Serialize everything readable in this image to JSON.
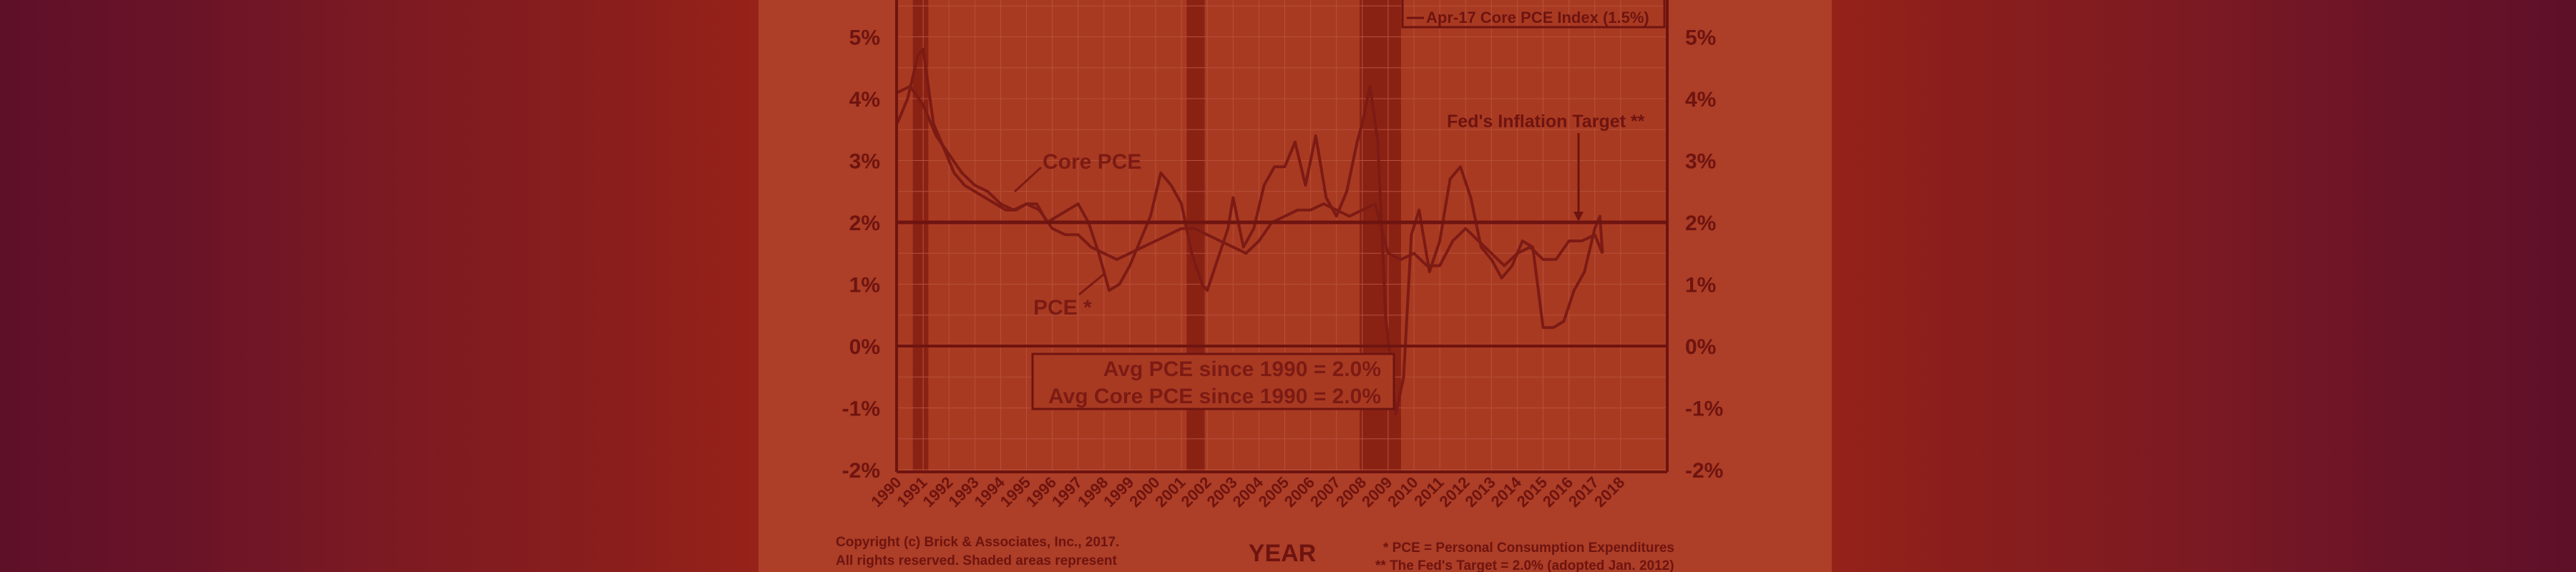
{
  "chart_data": {
    "type": "line",
    "xlabel": "YEAR",
    "ylim": [
      -2,
      5.5
    ],
    "xlim": [
      1990,
      2018
    ],
    "grid": true,
    "x_ticks": [
      "1990",
      "1991",
      "1992",
      "1993",
      "1994",
      "1995",
      "1996",
      "1997",
      "1998",
      "1999",
      "2000",
      "2001",
      "2002",
      "2003",
      "2004",
      "2005",
      "2006",
      "2007",
      "2008",
      "2009",
      "2010",
      "2011",
      "2012",
      "2013",
      "2014",
      "2015",
      "2016",
      "2017",
      "2018"
    ],
    "y_ticks": [
      {
        "value": 5,
        "label": "5%"
      },
      {
        "value": 4,
        "label": "4%"
      },
      {
        "value": 3,
        "label": "3%"
      },
      {
        "value": 2,
        "label": "2%"
      },
      {
        "value": 1,
        "label": "1%"
      },
      {
        "value": 0,
        "label": "0%"
      },
      {
        "value": -1,
        "label": "-1%"
      },
      {
        "value": -2,
        "label": "-2%"
      }
    ],
    "recessions": [
      [
        1990.6,
        1991.2
      ],
      [
        2001.2,
        2001.9
      ],
      [
        2007.9,
        2009.5
      ]
    ],
    "target_line": 2.0,
    "legend": {
      "text": "Apr-17 Core PCE Index (1.5%)",
      "position": "top-right"
    },
    "annotations": {
      "core_pce": "Core PCE",
      "pce": "PCE *",
      "fed_target": "Fed's Inflation Target **"
    },
    "avg_box": [
      "Avg PCE since 1990 = 2.0%",
      "Avg Core PCE since 1990 = 2.0%"
    ],
    "series": [
      {
        "name": "PCE",
        "x": [
          1990.0,
          1990.4,
          1990.8,
          1991.0,
          1991.4,
          1991.8,
          1992.2,
          1992.6,
          1993.0,
          1993.4,
          1993.8,
          1994.2,
          1994.6,
          1995.0,
          1995.4,
          1995.8,
          1996.2,
          1996.6,
          1997.0,
          1997.4,
          1997.8,
          1998.2,
          1998.6,
          1999.0,
          1999.4,
          1999.8,
          2000.2,
          2000.6,
          2001.0,
          2001.4,
          2001.8,
          2002.0,
          2002.4,
          2002.8,
          2003.0,
          2003.4,
          2003.8,
          2004.2,
          2004.6,
          2005.0,
          2005.4,
          2005.8,
          2006.2,
          2006.6,
          2007.0,
          2007.4,
          2007.8,
          2008.0,
          2008.3,
          2008.6,
          2008.9,
          2009.1,
          2009.3,
          2009.6,
          2009.9,
          2010.2,
          2010.6,
          2011.0,
          2011.4,
          2011.8,
          2012.2,
          2012.6,
          2013.0,
          2013.4,
          2013.8,
          2014.2,
          2014.6,
          2015.0,
          2015.4,
          2015.8,
          2016.2,
          2016.6,
          2017.0,
          2017.2,
          2017.3
        ],
        "values": [
          3.6,
          4.0,
          4.7,
          4.8,
          3.6,
          3.2,
          2.8,
          2.6,
          2.5,
          2.4,
          2.3,
          2.2,
          2.2,
          2.3,
          2.3,
          2.0,
          2.1,
          2.2,
          2.3,
          2.0,
          1.5,
          0.9,
          1.0,
          1.3,
          1.7,
          2.1,
          2.8,
          2.6,
          2.3,
          1.5,
          1.0,
          0.9,
          1.4,
          1.9,
          2.4,
          1.6,
          1.9,
          2.6,
          2.9,
          2.9,
          3.3,
          2.6,
          3.4,
          2.4,
          2.1,
          2.5,
          3.3,
          3.6,
          4.2,
          3.3,
          0.5,
          -0.3,
          -1.1,
          -0.5,
          1.8,
          2.2,
          1.2,
          1.7,
          2.7,
          2.9,
          2.4,
          1.6,
          1.4,
          1.1,
          1.3,
          1.7,
          1.6,
          0.3,
          0.3,
          0.4,
          0.9,
          1.2,
          1.9,
          2.1,
          1.5
        ]
      },
      {
        "name": "Core PCE",
        "x": [
          1990.0,
          1990.5,
          1991.0,
          1991.5,
          1992.0,
          1992.5,
          1993.0,
          1993.5,
          1994.0,
          1994.5,
          1995.0,
          1995.5,
          1996.0,
          1996.5,
          1997.0,
          1997.5,
          1998.0,
          1998.5,
          1999.0,
          1999.5,
          2000.0,
          2000.5,
          2001.0,
          2001.5,
          2002.0,
          2002.5,
          2003.0,
          2003.5,
          2004.0,
          2004.5,
          2005.0,
          2005.5,
          2006.0,
          2006.5,
          2007.0,
          2007.5,
          2008.0,
          2008.5,
          2009.0,
          2009.5,
          2010.0,
          2010.5,
          2011.0,
          2011.5,
          2012.0,
          2012.5,
          2013.0,
          2013.5,
          2014.0,
          2014.5,
          2015.0,
          2015.5,
          2016.0,
          2016.5,
          2017.0,
          2017.3
        ],
        "values": [
          4.1,
          4.2,
          3.9,
          3.4,
          3.1,
          2.8,
          2.6,
          2.5,
          2.3,
          2.2,
          2.3,
          2.2,
          1.9,
          1.8,
          1.8,
          1.6,
          1.5,
          1.4,
          1.5,
          1.6,
          1.7,
          1.8,
          1.9,
          1.9,
          1.8,
          1.7,
          1.6,
          1.5,
          1.7,
          2.0,
          2.1,
          2.2,
          2.2,
          2.3,
          2.2,
          2.1,
          2.2,
          2.3,
          1.5,
          1.4,
          1.5,
          1.3,
          1.3,
          1.7,
          1.9,
          1.7,
          1.5,
          1.3,
          1.5,
          1.6,
          1.4,
          1.4,
          1.7,
          1.7,
          1.8,
          1.5
        ]
      }
    ]
  },
  "footer": {
    "copyright_line1": "Copyright (c) Brick & Associates, Inc., 2017.",
    "copyright_line2": "All rights reserved.  Shaded areas represent",
    "note_line1": "* PCE = Personal Consumption Expenditures",
    "note_line2": "** The Fed's Target = 2.0% (adopted Jan. 2012)"
  },
  "colors": {
    "frame": "#6e1410",
    "line": "#7c1b14",
    "recession": "#8a2214",
    "plot_bg": "#a93a22"
  }
}
